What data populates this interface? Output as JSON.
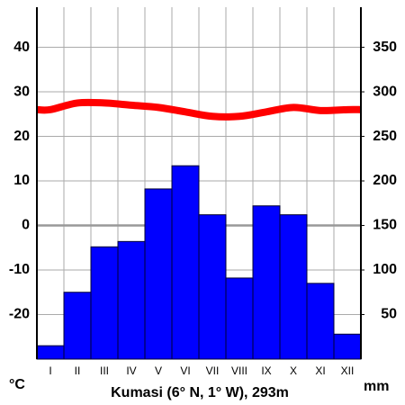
{
  "chart_data": {
    "type": "climograph",
    "title": "Kumasi (6° N, 1° W), 293m",
    "categories": [
      "I",
      "II",
      "III",
      "IV",
      "V",
      "VI",
      "VII",
      "VIII",
      "IX",
      "X",
      "XI",
      "XII"
    ],
    "ylabel": "°C",
    "y2label": "mm",
    "ylim": [
      -30,
      49
    ],
    "yticks": [
      -20,
      -10,
      0,
      10,
      20,
      30,
      40
    ],
    "y2lim": [
      0,
      395
    ],
    "y2ticks": [
      50,
      100,
      150,
      200,
      250,
      300,
      350
    ],
    "grid": true,
    "series": [
      {
        "type": "bar",
        "axis": "y2",
        "color": "#0000ff",
        "values": [
          15,
          75,
          126,
          132,
          191,
          217,
          162,
          91,
          172,
          162,
          85,
          28
        ]
      },
      {
        "type": "line",
        "axis": "y",
        "color": "#ff0000",
        "values": [
          26,
          27.5,
          27.5,
          27,
          26.5,
          25.5,
          24.5,
          24.5,
          25.5,
          26.5,
          25.8,
          26
        ]
      }
    ]
  }
}
